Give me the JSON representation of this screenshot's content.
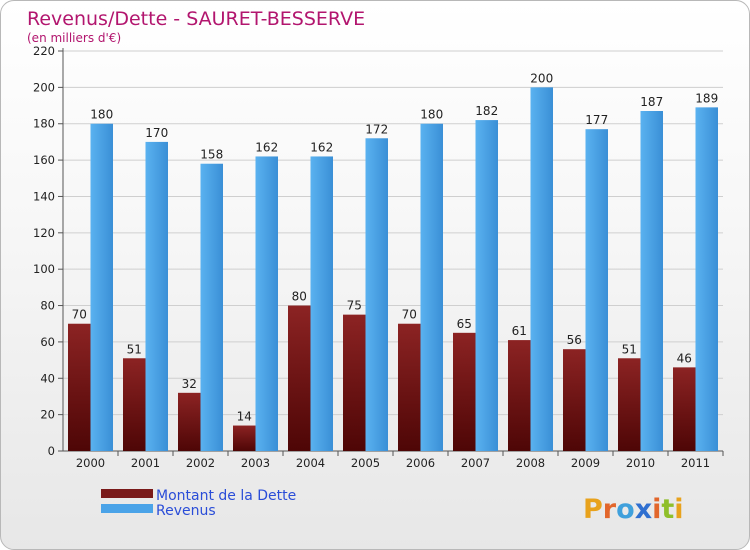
{
  "chart_data": {
    "type": "bar",
    "title": "Revenus/Dette - SAURET-BESSERVE",
    "subtitle": "(en milliers d'€)",
    "categories": [
      "2000",
      "2001",
      "2002",
      "2003",
      "2004",
      "2005",
      "2006",
      "2007",
      "2008",
      "2009",
      "2010",
      "2011"
    ],
    "series": [
      {
        "name": "Montant de la Dette",
        "color": "#7a1a1a",
        "values": [
          70,
          51,
          32,
          14,
          80,
          75,
          70,
          65,
          61,
          56,
          51,
          46
        ]
      },
      {
        "name": "Revenus",
        "color": "#4aa3e8",
        "values": [
          180,
          170,
          158,
          162,
          162,
          172,
          180,
          182,
          200,
          177,
          187,
          189
        ]
      }
    ],
    "ylim": [
      0,
      220
    ],
    "yticks": [
      0,
      20,
      40,
      60,
      80,
      100,
      120,
      140,
      160,
      180,
      200,
      220
    ],
    "grid": true,
    "legend_position": "bottom-left"
  },
  "logo": {
    "text": "Proxiti"
  }
}
